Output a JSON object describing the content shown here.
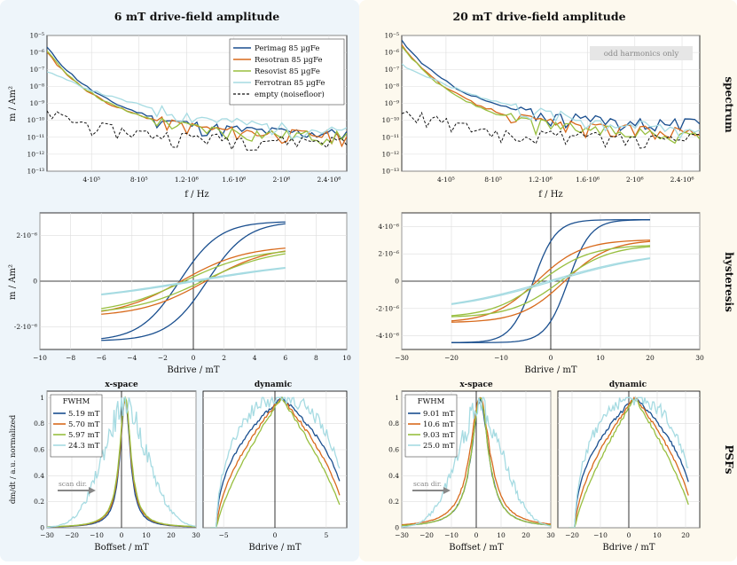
{
  "colors": {
    "perimag": "#1a4f8f",
    "resotran": "#d86a1c",
    "resovist": "#98bf3f",
    "ferrotran": "#a6dbe2",
    "empty": "#111111",
    "bgLeft": "#eef5fa",
    "bgRight": "#fdf9ee"
  },
  "column_titles": [
    "6 mT drive-field amplitude",
    "20 mT drive-field amplitude"
  ],
  "row_labels": [
    "spectrum",
    "hysteresis",
    "PSFs"
  ],
  "spectrum": {
    "ylabel": "m / Am²",
    "xlabel": "f / Hz",
    "y_ticks": [
      "10⁻⁵",
      "10⁻⁶",
      "10⁻⁷",
      "10⁻⁸",
      "10⁻⁹",
      "10⁻¹⁰",
      "10⁻¹¹",
      "10⁻¹²",
      "10⁻¹³"
    ],
    "x_ticks": [
      "4·10⁵",
      "8·10⁵",
      "1.2·10⁶",
      "1.6·10⁶",
      "2·10⁶",
      "2.4·10⁶"
    ],
    "legend": [
      "Perimag  85 µgFe",
      "Resotran  85 µgFe",
      "Resovist  85 µgFe",
      "Ferrotran  85 µgFe",
      "empty (noisefloor)"
    ],
    "annotation": "odd harmonics only"
  },
  "hysteresis": {
    "ylabel": "m / Am²",
    "xlabel": "Bdrive / mT",
    "left": {
      "y_ticks": [
        "2·10⁻⁶",
        "0",
        "-2·10⁻⁶"
      ],
      "x_ticks": [
        "−10",
        "−8",
        "−6",
        "−4",
        "−2",
        "0",
        "2",
        "4",
        "6",
        "8",
        "10"
      ]
    },
    "right": {
      "y_ticks": [
        "4·10⁻⁶",
        "2·10⁻⁶",
        "0",
        "-2·10⁻⁶",
        "-4·10⁻⁶"
      ],
      "x_ticks": [
        "−30",
        "−20",
        "−10",
        "0",
        "10",
        "20",
        "30"
      ]
    }
  },
  "psf": {
    "ylabel": "dm/dt / a.u. normalized",
    "y_ticks": [
      "1",
      "0.8",
      "0.6",
      "0.4",
      "0.2",
      "0"
    ],
    "sub_xspace": "x-space",
    "sub_dynamic": "dynamic",
    "xspace_xlabel": "Boffset / mT",
    "dynamic_xlabel": "Bdrive / mT",
    "scan_label": "scan dir.",
    "fwhm_title": "FWHM",
    "left": {
      "fwhm": [
        "5.19 mT",
        "5.70 mT",
        "5.97 mT",
        "24.3 mT"
      ],
      "xspace_ticks": [
        "−30",
        "−20",
        "−10",
        "0",
        "10",
        "20",
        "30"
      ],
      "dyn_ticks": [
        "−5",
        "0",
        "5"
      ]
    },
    "right": {
      "fwhm": [
        "9.01 mT",
        "10.6 mT",
        "9.03 mT",
        "25.0 mT"
      ],
      "xspace_ticks": [
        "−30",
        "−20",
        "−10",
        "0",
        "10",
        "20",
        "30"
      ],
      "dyn_ticks": [
        "−20",
        "−10",
        "0",
        "10",
        "20"
      ]
    }
  },
  "chart_data": [
    {
      "type": "line",
      "title": "spectrum — 6 mT drive-field amplitude",
      "xlabel": "f / Hz",
      "ylabel": "m / Am²",
      "xlim": [
        25000,
        2550000
      ],
      "ylim": [
        1e-13,
        1e-05
      ],
      "yscale": "log",
      "series": [
        {
          "name": "Perimag 85 µgFe",
          "decay": [
            2e-06,
            1.5e-11
          ]
        },
        {
          "name": "Resotran 85 µgFe",
          "decay": [
            1e-06,
            1.2e-11
          ]
        },
        {
          "name": "Resovist 85 µgFe",
          "decay": [
            1.2e-06,
            1.1e-11
          ]
        },
        {
          "name": "Ferrotran 85 µgFe",
          "decay": [
            8e-08,
            8e-12
          ]
        },
        {
          "name": "empty (noisefloor)",
          "decay": [
            3e-10,
            6e-12
          ]
        }
      ]
    },
    {
      "type": "line",
      "title": "spectrum — 20 mT drive-field amplitude",
      "xlabel": "f / Hz",
      "ylabel": "m / Am²",
      "xlim": [
        25000,
        2550000
      ],
      "ylim": [
        1e-13,
        1e-05
      ],
      "yscale": "log",
      "series": [
        {
          "name": "Perimag 85 µgFe",
          "decay": [
            5e-06,
            6e-11
          ]
        },
        {
          "name": "Resotran 85 µgFe",
          "decay": [
            3e-06,
            2e-11
          ]
        },
        {
          "name": "Resovist 85 µgFe",
          "decay": [
            2.5e-06,
            1.5e-11
          ]
        },
        {
          "name": "Ferrotran 85 µgFe",
          "decay": [
            2e-07,
            1e-11
          ]
        },
        {
          "name": "empty (noisefloor)",
          "decay": [
            5e-10,
            8e-12
          ]
        }
      ]
    },
    {
      "type": "line",
      "title": "hysteresis — 6 mT",
      "xlabel": "Bdrive / mT",
      "ylabel": "m / Am²",
      "xlim": [
        -10,
        10
      ],
      "ylim": [
        -3e-06,
        3e-06
      ],
      "series": [
        {
          "name": "Perimag",
          "amplitude": 2.6e-06,
          "coercive_mT": 0.9
        },
        {
          "name": "Resotran",
          "amplitude": 1.45e-06,
          "coercive_mT": 0.8
        },
        {
          "name": "Resovist",
          "amplitude": 1.3e-06,
          "coercive_mT": 0.6
        },
        {
          "name": "Ferrotran",
          "amplitude": 6e-07,
          "coercive_mT": 0.2
        }
      ]
    },
    {
      "type": "line",
      "title": "hysteresis — 20 mT",
      "xlabel": "Bdrive / mT",
      "ylabel": "m / Am²",
      "xlim": [
        -30,
        30
      ],
      "ylim": [
        -5e-06,
        5e-06
      ],
      "series": [
        {
          "name": "Perimag",
          "amplitude": 4.5e-06,
          "coercive_mT": 3.5
        },
        {
          "name": "Resotran",
          "amplitude": 3e-06,
          "coercive_mT": 2.8
        },
        {
          "name": "Resovist",
          "amplitude": 2.6e-06,
          "coercive_mT": 2.0
        },
        {
          "name": "Ferrotran",
          "amplitude": 1.7e-06,
          "coercive_mT": 0.5
        }
      ]
    },
    {
      "type": "line",
      "title": "PSF x-space — 6 mT",
      "xlabel": "Boffset / mT",
      "ylabel": "dm/dt normalized",
      "xlim": [
        -30,
        30
      ],
      "ylim": [
        0,
        1.05
      ],
      "series": [
        {
          "name": "Perimag",
          "fwhm_mT": 5.19
        },
        {
          "name": "Resotran",
          "fwhm_mT": 5.7
        },
        {
          "name": "Resovist",
          "fwhm_mT": 5.97
        },
        {
          "name": "Ferrotran",
          "fwhm_mT": 24.3
        }
      ]
    },
    {
      "type": "line",
      "title": "PSF dynamic — 6 mT",
      "xlabel": "Bdrive / mT",
      "ylabel": "dm/dt normalized",
      "xlim": [
        -7,
        7
      ],
      "ylim": [
        0,
        1.05
      ],
      "series": [
        {
          "name": "Perimag"
        },
        {
          "name": "Resotran"
        },
        {
          "name": "Resovist"
        },
        {
          "name": "Ferrotran"
        }
      ]
    },
    {
      "type": "line",
      "title": "PSF x-space — 20 mT",
      "xlabel": "Boffset / mT",
      "ylabel": "dm/dt normalized",
      "xlim": [
        -30,
        30
      ],
      "ylim": [
        0,
        1.05
      ],
      "series": [
        {
          "name": "Perimag",
          "fwhm_mT": 9.01
        },
        {
          "name": "Resotran",
          "fwhm_mT": 10.6
        },
        {
          "name": "Resovist",
          "fwhm_mT": 9.03
        },
        {
          "name": "Ferrotran",
          "fwhm_mT": 25.0
        }
      ]
    },
    {
      "type": "line",
      "title": "PSF dynamic — 20 mT",
      "xlabel": "Bdrive / mT",
      "ylabel": "dm/dt normalized",
      "xlim": [
        -25,
        25
      ],
      "ylim": [
        0,
        1.05
      ],
      "series": [
        {
          "name": "Perimag"
        },
        {
          "name": "Resotran"
        },
        {
          "name": "Resovist"
        },
        {
          "name": "Ferrotran"
        }
      ]
    }
  ]
}
